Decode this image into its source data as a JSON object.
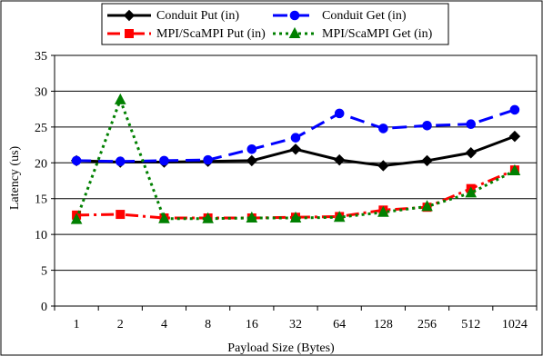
{
  "chart_data": {
    "type": "line",
    "title": "",
    "xlabel": "Payload Size (Bytes)",
    "ylabel": "Latency (us)",
    "categories": [
      "1",
      "2",
      "4",
      "8",
      "16",
      "32",
      "64",
      "128",
      "256",
      "512",
      "1024"
    ],
    "yticks": [
      "0",
      "5",
      "10",
      "15",
      "20",
      "25",
      "30",
      "35"
    ],
    "ylim": [
      0,
      35
    ],
    "grid": "horizontal",
    "legend_position": "top",
    "series": [
      {
        "name": "Conduit Put (in)",
        "color": "#000000",
        "dash": "solid",
        "marker": "diamond",
        "values": [
          20.3,
          20.1,
          20.1,
          20.2,
          20.3,
          21.9,
          20.4,
          19.6,
          20.3,
          21.4,
          23.7
        ]
      },
      {
        "name": "Conduit Get (in)",
        "color": "#0000ff",
        "dash": "long-dash",
        "marker": "circle",
        "values": [
          20.3,
          20.2,
          20.3,
          20.4,
          21.9,
          23.5,
          26.9,
          24.8,
          25.2,
          25.4,
          27.4
        ]
      },
      {
        "name": "MPI/ScaMPI Put (in)",
        "color": "#ff0000",
        "dash": "dash-dot",
        "marker": "square",
        "values": [
          12.7,
          12.8,
          12.3,
          12.3,
          12.3,
          12.4,
          12.5,
          13.4,
          13.8,
          16.4,
          19.0
        ]
      },
      {
        "name": "MPI/ScaMPI Get (in)",
        "color": "#008000",
        "dash": "dotted",
        "marker": "triangle",
        "values": [
          12.1,
          28.8,
          12.2,
          12.2,
          12.3,
          12.3,
          12.4,
          13.1,
          13.9,
          15.8,
          18.9
        ]
      }
    ]
  }
}
